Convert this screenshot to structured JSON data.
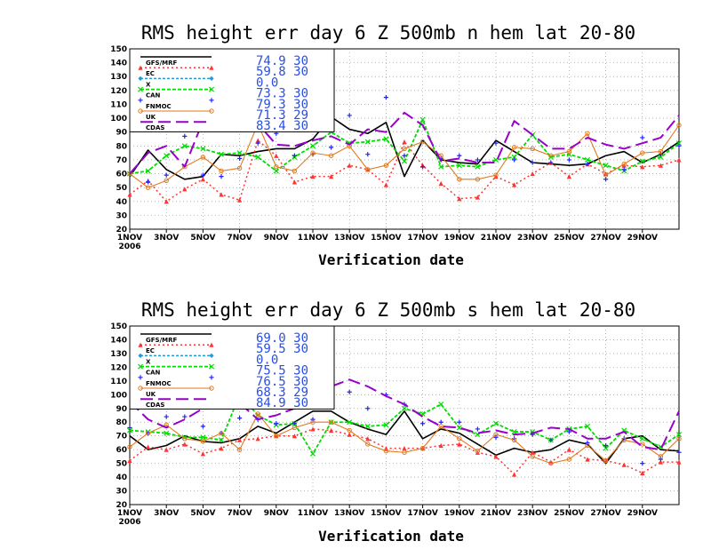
{
  "chart_data": [
    {
      "type": "line",
      "title": "RMS height err   day 6  Z 500mb   n hem   lat 20-80",
      "xlabel": "Verification date",
      "x_ticks": [
        "1NOV",
        "3NOV",
        "5NOV",
        "7NOV",
        "9NOV",
        "11NOV",
        "13NOV",
        "15NOV",
        "17NOV",
        "19NOV",
        "21NOV",
        "23NOV",
        "25NOV",
        "27NOV",
        "29NOV"
      ],
      "x_year": "2006",
      "y_ticks": [
        "20",
        "30",
        "40",
        "50",
        "60",
        "70",
        "80",
        "90",
        "100",
        "110",
        "120",
        "130",
        "140",
        "150"
      ],
      "ylim": [
        20,
        150
      ],
      "grid": true,
      "legend_placement": "top-left",
      "series": [
        {
          "name": "GFS/MRF",
          "summary": "74.9  30",
          "color": "#000000",
          "values": [
            58,
            77,
            63,
            56,
            58,
            74,
            73,
            76,
            78,
            78,
            85,
            101,
            92,
            89,
            97,
            58,
            84,
            70,
            68,
            67,
            84,
            76,
            68,
            67,
            66,
            67,
            73,
            76,
            68,
            74,
            83
          ]
        },
        {
          "name": "EC",
          "summary": "59.8  30",
          "color": "#ff3333",
          "values": [
            45,
            55,
            40,
            49,
            56,
            45,
            41,
            84,
            73,
            54,
            58,
            58,
            66,
            63,
            52,
            83,
            66,
            53,
            42,
            43,
            58,
            52,
            60,
            68,
            58,
            67,
            60,
            66,
            65,
            66,
            70
          ]
        },
        {
          "name": "X",
          "summary": "0.0",
          "color": "#1e9bd8",
          "values": []
        },
        {
          "name": "CAN",
          "summary": "73.3  30",
          "color": "#00dd00",
          "values": [
            60,
            62,
            73,
            80,
            78,
            74,
            75,
            72,
            62,
            72,
            80,
            90,
            82,
            83,
            85,
            69,
            99,
            65,
            66,
            65,
            70,
            72,
            88,
            72,
            74,
            70,
            66,
            62,
            69,
            72,
            82
          ]
        },
        {
          "name": "FNMOC",
          "summary": "79.3  30",
          "color": "#2222ff",
          "values": [
            null,
            54,
            59,
            87,
            59,
            58,
            71,
            82,
            89,
            73,
            74,
            79,
            102,
            74,
            115,
            73,
            65,
            71,
            73,
            70,
            82,
            70,
            68,
            68,
            70,
            67,
            56,
            63,
            86,
            74,
            80
          ]
        },
        {
          "name": "UK",
          "summary": "71.3  29",
          "color": "#e07a1f",
          "values": [
            60,
            50,
            55,
            65,
            72,
            62,
            64,
            96,
            65,
            62,
            75,
            73,
            80,
            63,
            66,
            78,
            83,
            73,
            56,
            56,
            59,
            79,
            78,
            73,
            76,
            89,
            59,
            67,
            75,
            76,
            95
          ]
        },
        {
          "name": "CDAS",
          "summary": "83.4  30",
          "color": "#9900cc",
          "values": [
            60,
            75,
            80,
            65,
            98,
            100,
            91,
            96,
            81,
            80,
            84,
            87,
            81,
            92,
            90,
            104,
            95,
            69,
            71,
            68,
            68,
            98,
            88,
            78,
            78,
            86,
            81,
            78,
            82,
            86,
            102
          ]
        }
      ]
    },
    {
      "type": "line",
      "title": "RMS height err   day 6  Z 500mb   s hem   lat 20-80",
      "xlabel": "Verification date",
      "x_ticks": [
        "1NOV",
        "3NOV",
        "5NOV",
        "7NOV",
        "9NOV",
        "11NOV",
        "13NOV",
        "15NOV",
        "17NOV",
        "19NOV",
        "21NOV",
        "23NOV",
        "25NOV",
        "27NOV",
        "29NOV"
      ],
      "x_year": "2006",
      "y_ticks": [
        "20",
        "30",
        "40",
        "50",
        "60",
        "70",
        "80",
        "90",
        "100",
        "110",
        "120",
        "130",
        "140",
        "150"
      ],
      "ylim": [
        20,
        150
      ],
      "grid": true,
      "legend_placement": "top-left",
      "series": [
        {
          "name": "GFS/MRF",
          "summary": "69.0  30",
          "color": "#000000",
          "values": [
            70,
            60,
            63,
            70,
            66,
            65,
            68,
            77,
            72,
            80,
            88,
            88,
            80,
            75,
            71,
            88,
            68,
            75,
            72,
            64,
            56,
            61,
            58,
            60,
            67,
            64,
            50,
            68,
            70,
            60,
            59
          ]
        },
        {
          "name": "EC",
          "summary": "59.5  30",
          "color": "#ff3333",
          "values": [
            52,
            62,
            60,
            64,
            57,
            61,
            67,
            68,
            70,
            70,
            75,
            74,
            71,
            68,
            61,
            61,
            61,
            63,
            64,
            58,
            55,
            42,
            58,
            51,
            60,
            53,
            52,
            49,
            43,
            51,
            51
          ]
        },
        {
          "name": "X",
          "summary": "0.0",
          "color": "#1e9bd8",
          "values": []
        },
        {
          "name": "CAN",
          "summary": "75.5  30",
          "color": "#00dd00",
          "values": [
            74,
            73,
            72,
            69,
            69,
            67,
            100,
            85,
            78,
            79,
            57,
            80,
            80,
            77,
            78,
            90,
            86,
            93,
            76,
            71,
            79,
            73,
            73,
            67,
            75,
            77,
            61,
            74,
            68,
            62,
            71
          ]
        },
        {
          "name": "FNMOC",
          "summary": "76.5  30",
          "color": "#2222ff",
          "values": [
            76,
            72,
            84,
            84,
            77,
            72,
            83,
            82,
            79,
            79,
            82,
            101,
            102,
            90,
            100,
            93,
            79,
            80,
            80,
            75,
            69,
            68,
            71,
            67,
            73,
            65,
            63,
            68,
            50,
            53,
            58
          ]
        },
        {
          "name": "UK",
          "summary": "68.3  29",
          "color": "#e07a1f",
          "values": [
            62,
            72,
            78,
            68,
            66,
            72,
            60,
            86,
            70,
            76,
            80,
            80,
            74,
            64,
            59,
            58,
            61,
            77,
            68,
            59,
            71,
            67,
            55,
            50,
            53,
            63,
            52,
            67,
            64,
            55,
            68
          ]
        },
        {
          "name": "CDAS",
          "summary": "84.9  30",
          "color": "#9900cc",
          "values": [
            95,
            82,
            76,
            82,
            90,
            93,
            94,
            82,
            85,
            90,
            101,
            106,
            111,
            106,
            99,
            93,
            84,
            77,
            76,
            72,
            74,
            71,
            72,
            76,
            75,
            68,
            68,
            73,
            62,
            60,
            88
          ]
        }
      ]
    }
  ]
}
